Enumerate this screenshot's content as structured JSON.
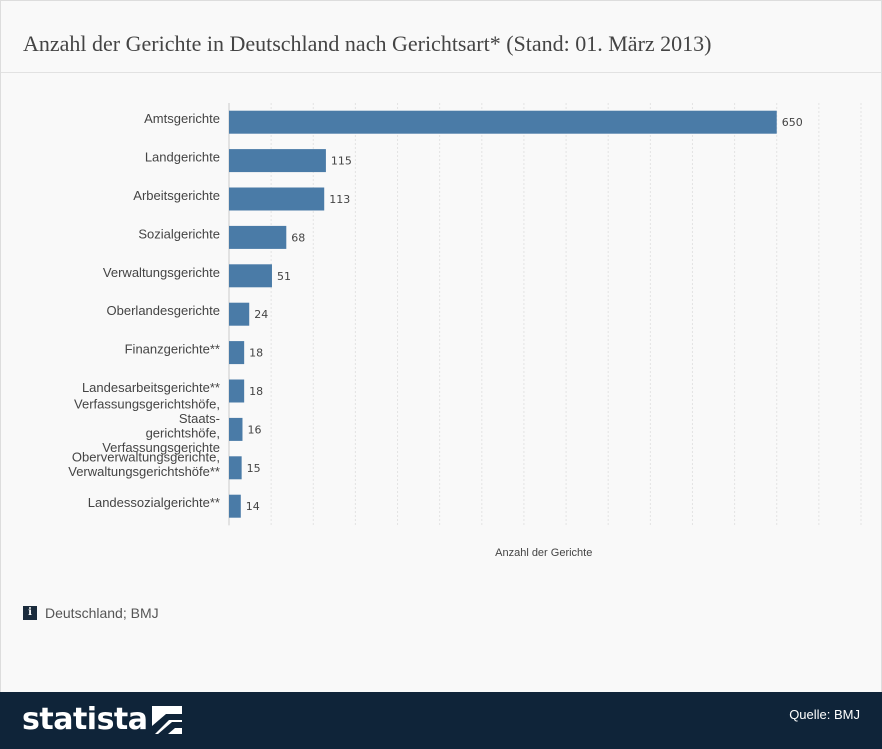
{
  "title": "Anzahl der Gerichte in Deutschland nach Gerichtsart* (Stand: 01. März 2013)",
  "info_note": "Deutschland; BMJ",
  "footer": {
    "logo_text": "statista",
    "source": "Quelle: BMJ"
  },
  "colors": {
    "bar": "#4a7ba7",
    "footer": "#0f2439"
  },
  "icons": {
    "info": "info-icon",
    "logo": "statista-logo-mark"
  },
  "chart_data": {
    "type": "bar",
    "orientation": "horizontal",
    "categories": [
      "Amtsgerichte",
      "Landgerichte",
      "Arbeitsgerichte",
      "Sozialgerichte",
      "Verwaltungsgerichte",
      "Oberlandesgerichte",
      "Finanzgerichte**",
      "Landesarbeitsgerichte**",
      "Verfassungsgerichtshöfe, Staats- gerichtshöfe, Verfassungsgerichte",
      "Oberverwaltungsgerichte, Verwaltungsgerichtshöfe**",
      "Landessozialgerichte**"
    ],
    "category_lines": [
      [
        "Amtsgerichte"
      ],
      [
        "Landgerichte"
      ],
      [
        "Arbeitsgerichte"
      ],
      [
        "Sozialgerichte"
      ],
      [
        "Verwaltungsgerichte"
      ],
      [
        "Oberlandesgerichte"
      ],
      [
        "Finanzgerichte**"
      ],
      [
        "Landesarbeitsgerichte**"
      ],
      [
        "Verfassungsgerichtshöfe,",
        "Staats-",
        "gerichtshöfe,",
        "Verfassungsgerichte"
      ],
      [
        "Oberverwaltungsgerichte,",
        "Verwaltungsgerichtshöfe**"
      ],
      [
        "Landessozialgerichte**"
      ]
    ],
    "values": [
      650,
      115,
      113,
      68,
      51,
      24,
      18,
      18,
      16,
      15,
      14
    ],
    "value_labels": [
      "650",
      "115",
      "113",
      "68",
      "51",
      "24",
      "18",
      "18",
      "16",
      "15",
      "14"
    ],
    "xlabel": "Anzahl der Gerichte",
    "xlim": [
      0,
      750
    ],
    "grid": true,
    "grid_step": 50
  }
}
